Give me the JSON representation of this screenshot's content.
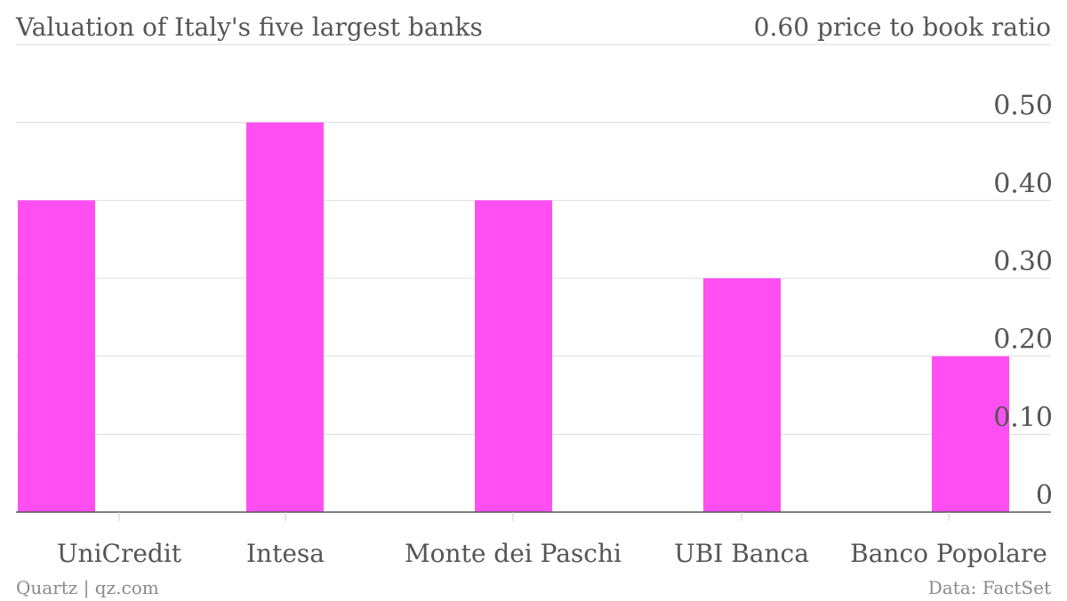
{
  "chart_data": {
    "type": "bar",
    "title": "Valuation of Italy's five largest banks",
    "ylabel": "0.60 price to book ratio",
    "categories": [
      "UniCredit",
      "Intesa",
      "Monte dei Paschi",
      "UBI Banca",
      "Banco Popolare"
    ],
    "values": [
      0.4,
      0.5,
      0.4,
      0.3,
      0.2
    ],
    "ylim": [
      0,
      0.6
    ],
    "yticks": [
      0,
      0.1,
      0.2,
      0.3,
      0.4,
      0.5
    ],
    "ytick_labels": [
      "0",
      "0.10",
      "0.20",
      "0.30",
      "0.40",
      "0.50"
    ],
    "grid": true,
    "bar_color": "#ff4ff2",
    "source": "Quartz | qz.com",
    "credit": "Data: FactSet"
  }
}
